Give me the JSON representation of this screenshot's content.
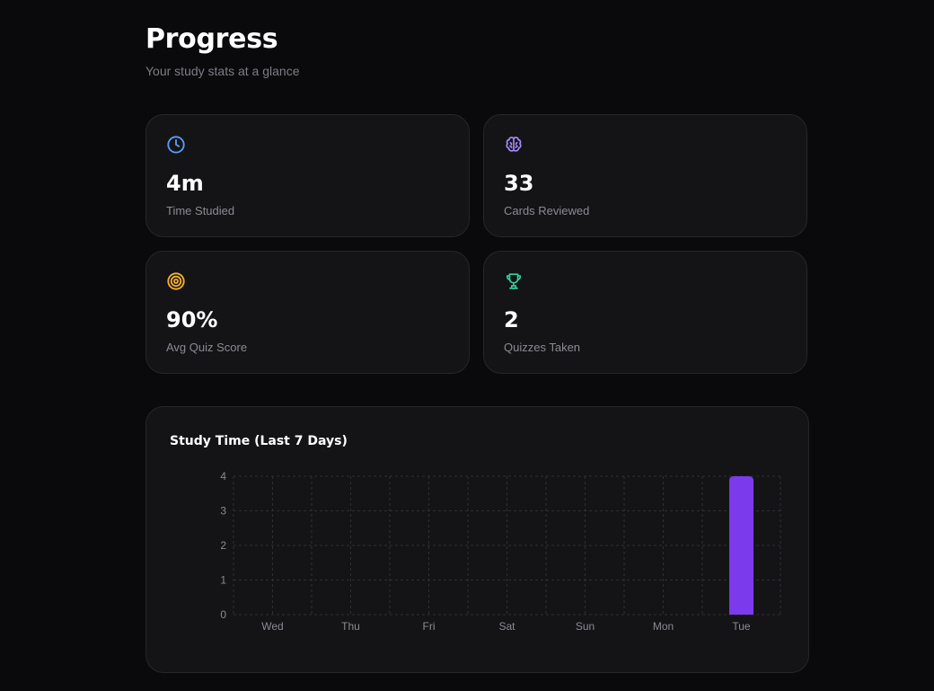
{
  "header": {
    "title": "Progress",
    "subtitle": "Your study stats at a glance"
  },
  "stats": [
    {
      "icon": "clock-icon",
      "color": "#5b9cf6",
      "value": "4m",
      "label": "Time Studied"
    },
    {
      "icon": "brain-icon",
      "color": "#a78bfa",
      "value": "33",
      "label": "Cards Reviewed"
    },
    {
      "icon": "target-icon",
      "color": "#f5b22d",
      "value": "90%",
      "label": "Avg Quiz Score"
    },
    {
      "icon": "trophy-icon",
      "color": "#34d399",
      "value": "2",
      "label": "Quizzes Taken"
    }
  ],
  "chart_data": {
    "type": "bar",
    "title": "Study Time (Last 7 Days)",
    "categories": [
      "Wed",
      "Thu",
      "Fri",
      "Sat",
      "Sun",
      "Mon",
      "Tue"
    ],
    "values": [
      0,
      0,
      0,
      0,
      0,
      0,
      4
    ],
    "y_ticks": [
      0,
      1,
      2,
      3,
      4
    ],
    "ylim": [
      0,
      4
    ],
    "grid": true,
    "bar_color": "#7c3aed"
  }
}
